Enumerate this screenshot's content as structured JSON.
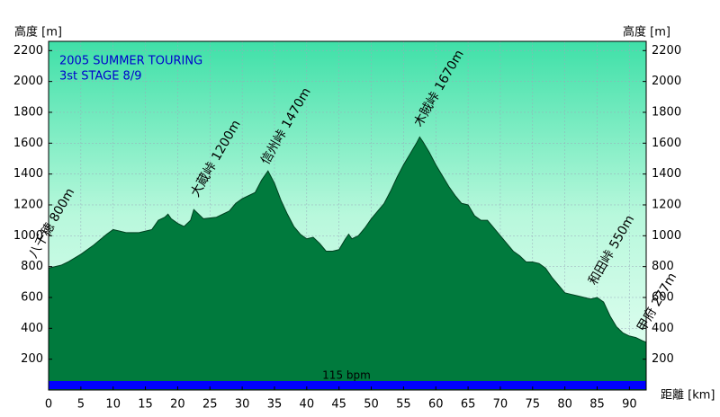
{
  "chart_data": {
    "type": "area",
    "title": "2005 SUMMER TOURING",
    "subtitle": "3st STAGE  8/9",
    "y_label": "高度 [m]",
    "x_label": "距離 [km]",
    "x": [
      0,
      2,
      3,
      5,
      7,
      9,
      10,
      11,
      12,
      14,
      16,
      17,
      18,
      18.5,
      19,
      20,
      21,
      22,
      22.5,
      23,
      24,
      26,
      28,
      29,
      30,
      32,
      33,
      34,
      35,
      36,
      37,
      38,
      39,
      40,
      41,
      42,
      43,
      44,
      45,
      46,
      46.5,
      47,
      48,
      49,
      50,
      52,
      53,
      54,
      55,
      56,
      57,
      57.5,
      58,
      59,
      60,
      61,
      62,
      63,
      64,
      65,
      66,
      67,
      68,
      69,
      70,
      71,
      72,
      73,
      74,
      75,
      76,
      77,
      78,
      79,
      80,
      81,
      82,
      83,
      84,
      85,
      86,
      87,
      88,
      89,
      90,
      91,
      92,
      92.6
    ],
    "series": [
      {
        "name": "高度",
        "color": "#007a3d",
        "values": [
          790,
          810,
          830,
          880,
          940,
          1010,
          1040,
          1030,
          1020,
          1020,
          1040,
          1100,
          1120,
          1140,
          1110,
          1080,
          1060,
          1100,
          1170,
          1150,
          1110,
          1120,
          1160,
          1210,
          1240,
          1280,
          1360,
          1420,
          1340,
          1230,
          1140,
          1060,
          1010,
          980,
          990,
          950,
          900,
          900,
          910,
          980,
          1010,
          980,
          1000,
          1050,
          1110,
          1210,
          1290,
          1380,
          1460,
          1530,
          1600,
          1640,
          1610,
          1540,
          1460,
          1390,
          1320,
          1260,
          1210,
          1200,
          1130,
          1100,
          1100,
          1050,
          1000,
          950,
          900,
          870,
          830,
          830,
          820,
          790,
          730,
          680,
          630,
          620,
          610,
          600,
          590,
          600,
          570,
          480,
          410,
          370,
          350,
          340,
          320,
          310
        ]
      }
    ],
    "xlim": [
      0,
      92.6
    ],
    "ylim": [
      0,
      2260
    ],
    "xticks": [
      0,
      5,
      10,
      15,
      20,
      25,
      30,
      35,
      40,
      45,
      50,
      55,
      60,
      65,
      70,
      75,
      80,
      85,
      90
    ],
    "yticks": [
      200,
      400,
      600,
      800,
      1000,
      1200,
      1400,
      1600,
      1800,
      2000,
      2200
    ],
    "annotations": [
      "八千穂 800m",
      "大蔵峠 1200m",
      "信州峠 1470m",
      "木賊峠 1670m",
      "和田峠 550m",
      "甲府 277m",
      "115 bpm"
    ],
    "grid": true
  }
}
